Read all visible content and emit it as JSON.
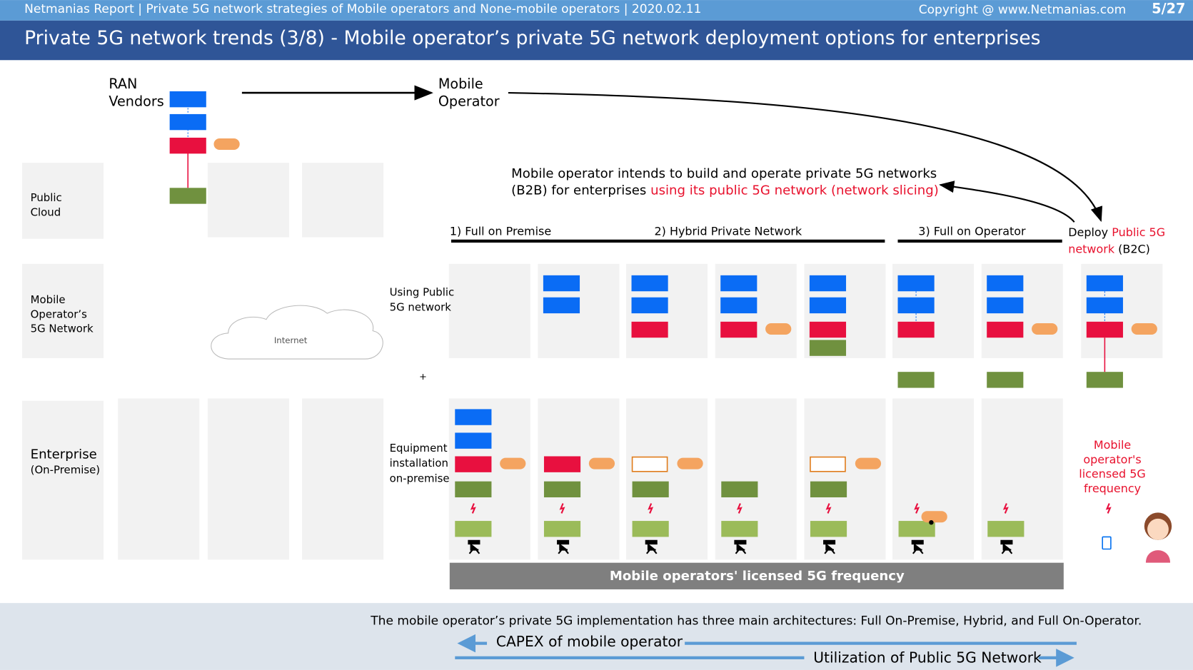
{
  "header": {
    "report": "Netmanias Report | Private 5G network strategies of Mobile operators and None-mobile operators  | 2020.02.11",
    "copyright": "Copyright @ www.Netmanias.com",
    "page": "5/27"
  },
  "title": "Private 5G network trends (3/8) - Mobile operator’s private 5G network deployment options for enterprises",
  "top": {
    "ran_vendors": [
      "RAN",
      "Vendors"
    ],
    "mobile_operator": [
      "Mobile",
      "Operator"
    ]
  },
  "annotation": {
    "line1": "Mobile operator intends to build and operate private 5G networks",
    "line2_black": "(B2B) for enterprises ",
    "line2_red": "using its public 5G network (network slicing)"
  },
  "sections": [
    "1) Full on Premise",
    "2) Hybrid Private Network",
    "3) Full on Operator"
  ],
  "deploy": {
    "prefix": "Deploy ",
    "red1": "Public 5G",
    "red2": "network",
    "suffix": " (B2C)"
  },
  "rows": {
    "public_cloud": [
      "Public",
      "Cloud"
    ],
    "mobile_network": [
      "Mobile",
      "Operator’s",
      "5G Network"
    ],
    "enterprise": [
      "Enterprise",
      "(On-Premise)"
    ]
  },
  "internet": "Internet",
  "using_public": [
    "Using Public",
    "5G network"
  ],
  "plus": "+",
  "equipment": [
    "Equipment",
    "installation",
    "on-premise"
  ],
  "licensed_red": [
    "Mobile",
    "operator's",
    "licensed 5G",
    "frequency"
  ],
  "bar_text": "Mobile operators' licensed 5G frequency",
  "footer": {
    "summary": "The mobile operator’s private 5G implementation has three main architectures: Full On-Premise, Hybrid, and Full On-Operator.",
    "capex": "CAPEX of mobile operator",
    "utilization": "Utilization of Public 5G Network"
  }
}
